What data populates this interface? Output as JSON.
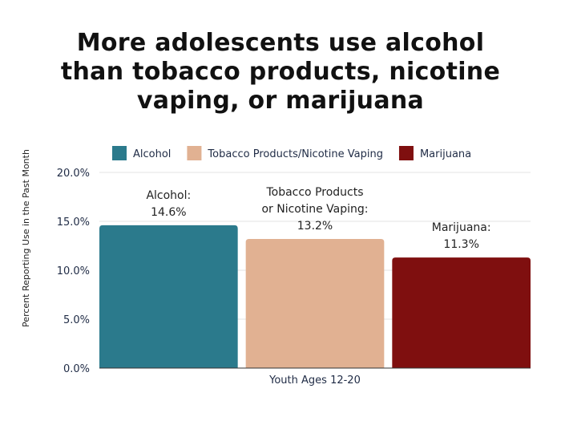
{
  "title_lines": [
    "More adolescents use alcohol",
    "than tobacco products, nicotine",
    "vaping, or marijuana"
  ],
  "chart_data": {
    "type": "bar",
    "title": "More adolescents use alcohol than tobacco products, nicotine vaping, or marijuana",
    "xlabel": "Youth Ages 12-20",
    "ylabel": "Percent Reporting Use in the Past Month",
    "ylim": [
      0,
      20
    ],
    "yticks": [
      "0.0%",
      "5.0%",
      "10.0%",
      "15.0%",
      "20.0%"
    ],
    "grid": true,
    "legend_position": "top",
    "categories": [
      "Youth Ages 12-20"
    ],
    "series": [
      {
        "name": "Alcohol",
        "values": [
          14.6
        ],
        "color": "#2b7a8c",
        "label_lines": [
          "Alcohol:",
          "14.6%"
        ]
      },
      {
        "name": "Tobacco Products/Nicotine Vaping",
        "values": [
          13.2
        ],
        "color": "#e1b192",
        "label_lines": [
          "Tobacco Products",
          "or Nicotine Vaping:",
          "13.2%"
        ]
      },
      {
        "name": "Marijuana",
        "values": [
          11.3
        ],
        "color": "#7f0f0f",
        "label_lines": [
          "Marijuana:",
          "11.3%"
        ]
      }
    ]
  }
}
